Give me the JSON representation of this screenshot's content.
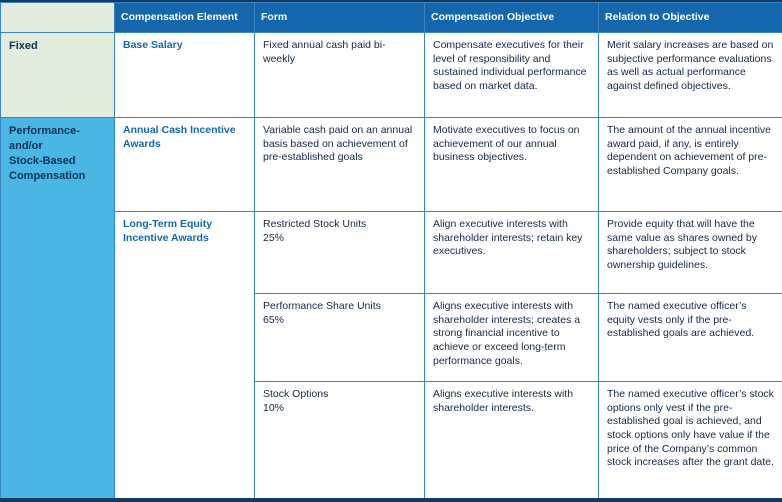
{
  "palette": {
    "header_bg": "#1467ad",
    "group_fixed_bg": "#e4ebdf",
    "group_performance_bg": "#49b6e3",
    "grid_border": "#3b84c0",
    "element_text": "#1467ad",
    "body_text": "#16294a",
    "edge_dark": "#123a63"
  },
  "header": {
    "corner": "",
    "cols": [
      "Compensation Element",
      "Form",
      "Compensation Objective",
      "Relation to Objective"
    ]
  },
  "groups": {
    "fixed": "Fixed",
    "performance": "Performance-\nand/or\nStock-Based\nCompensation"
  },
  "rows": [
    {
      "element": "Base Salary",
      "form": "Fixed annual cash paid bi-weekly",
      "objective": "Compensate executives for their level of responsibility and sustained individual performance based on market data.",
      "relation": "Merit salary increases are based on subjective performance evaluations as well as actual performance against defined objectives."
    },
    {
      "element": "Annual Cash Incentive Awards",
      "form": "Variable cash paid on an annual basis based on achievement of pre-established goals",
      "objective": "Motivate executives to focus on achievement of our annual business objectives.",
      "relation": "The amount of the annual incentive award paid, if any, is entirely dependent on achievement of pre-established Company goals."
    },
    {
      "element": "Long-Term Equity Incentive Awards",
      "form": "Restricted Stock Units\n25%",
      "objective": "Align executive interests with shareholder interests; retain key executives.",
      "relation": "Provide equity that will have the same value as shares owned by shareholders; subject to stock ownership guidelines."
    },
    {
      "form": "Performance Share Units\n65%",
      "objective": "Aligns executive interests with shareholder interests; creates a strong financial incentive to achieve or exceed long-term performance goals.",
      "relation": "The named executive officer’s equity vests only if the pre-established goals are achieved."
    },
    {
      "form": "Stock Options\n10%",
      "objective": "Aligns executive interests with shareholder interests.",
      "relation": "The named executive officer’s stock options only vest if the pre-established goal is achieved, and stock options only have value if the price of the Company’s common stock increases after the grant date."
    }
  ]
}
